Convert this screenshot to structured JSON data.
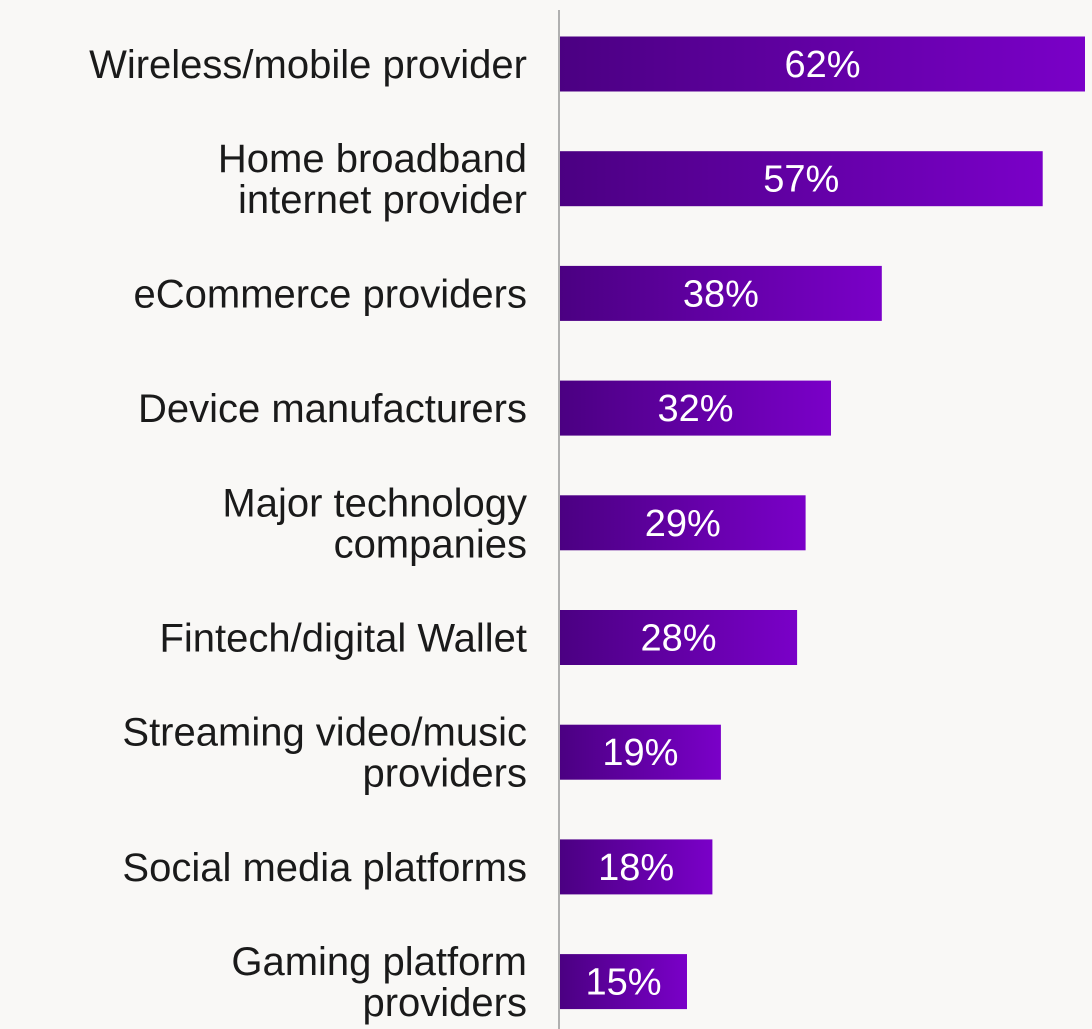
{
  "chart_data": {
    "type": "bar",
    "orientation": "horizontal",
    "categories": [
      "Wireless/mobile provider",
      "Home broadband internet provider",
      "eCommerce providers",
      "Device manufacturers",
      "Major technology companies",
      "Fintech/digital Wallet",
      "Streaming video/music providers",
      "Social media platforms",
      "Gaming platform providers"
    ],
    "category_lines": [
      [
        "Wireless/mobile provider"
      ],
      [
        "Home broadband",
        "internet provider"
      ],
      [
        "eCommerce providers"
      ],
      [
        "Device manufacturers"
      ],
      [
        "Major technology",
        "companies"
      ],
      [
        "Fintech/digital Wallet"
      ],
      [
        "Streaming video/music",
        "providers"
      ],
      [
        "Social media platforms"
      ],
      [
        "Gaming platform",
        "providers"
      ]
    ],
    "values": [
      62,
      57,
      38,
      32,
      29,
      28,
      19,
      18,
      15
    ],
    "value_labels": [
      "62%",
      "57%",
      "38%",
      "32%",
      "29%",
      "28%",
      "19%",
      "18%",
      "15%"
    ],
    "xlim": [
      0,
      62
    ],
    "grid": false,
    "legend": "none",
    "colors": {
      "bar_start": "#4b0082",
      "bar_end": "#7a00c8",
      "axis": "#b0b0b0",
      "background": "#f9f8f6"
    }
  }
}
